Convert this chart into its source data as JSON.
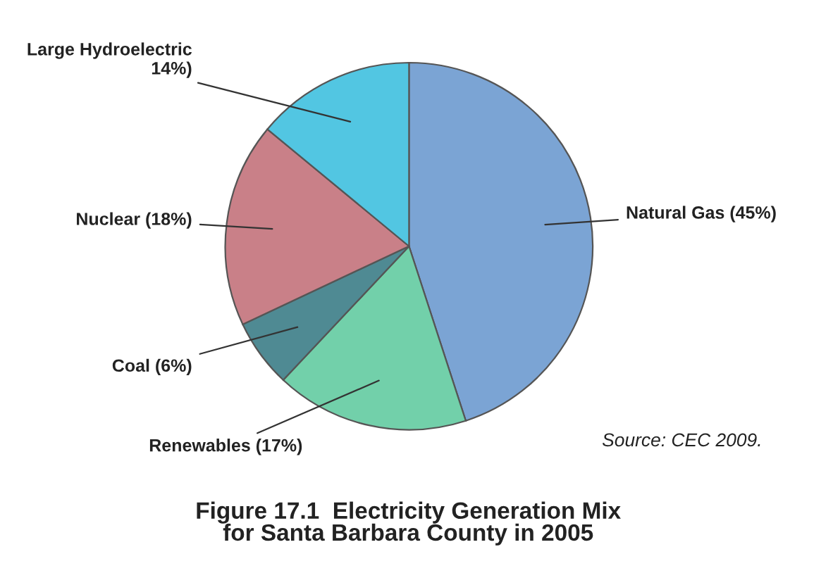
{
  "chart_data": {
    "type": "pie",
    "title": "Figure 17.1  Electricity Generation Mix\nfor Santa Barbara County in 2005",
    "categories": [
      "Natural Gas (45%)",
      "Renewables (17%)",
      "Coal (6%)",
      "Nuclear (18%)",
      "Large Hydroelectric\n14%)"
    ],
    "values": [
      45,
      17,
      6,
      18,
      14
    ],
    "colors": [
      "#7ba4d4",
      "#72d0aa",
      "#4f8a93",
      "#c98088",
      "#52c6e2"
    ],
    "annotations": [
      "Source: CEC 2009."
    ]
  }
}
